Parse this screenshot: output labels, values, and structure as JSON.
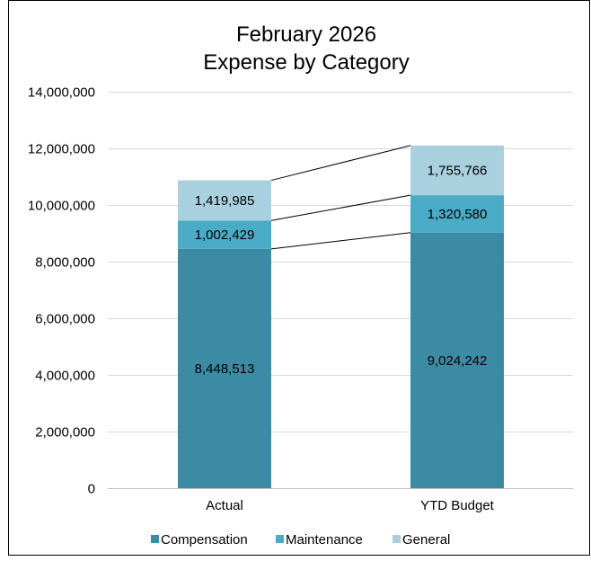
{
  "chart_data": {
    "type": "bar",
    "stacked": true,
    "title": [
      "February 2026",
      "Expense by Category"
    ],
    "categories": [
      "Actual",
      "YTD Budget"
    ],
    "series": [
      {
        "name": "Compensation",
        "color": "#3b8ba4",
        "values": [
          8448513,
          9024242
        ],
        "labels": [
          "8,448,513",
          "9,024,242"
        ]
      },
      {
        "name": "Maintenance",
        "color": "#4aabc6",
        "values": [
          1002429,
          1320580
        ],
        "labels": [
          "1,002,429",
          "1,320,580"
        ]
      },
      {
        "name": "General",
        "color": "#a9d0df",
        "values": [
          1419985,
          1755766
        ],
        "labels": [
          "1,419,985",
          "1,755,766"
        ]
      }
    ],
    "ylim": [
      0,
      14000000
    ],
    "yticks": [
      0,
      2000000,
      4000000,
      6000000,
      8000000,
      10000000,
      12000000,
      14000000
    ],
    "ytick_labels": [
      "0",
      "2,000,000",
      "4,000,000",
      "6,000,000",
      "8,000,000",
      "10,000,000",
      "12,000,000",
      "14,000,000"
    ],
    "grid": true,
    "series_lines": true,
    "legend_position": "bottom"
  }
}
